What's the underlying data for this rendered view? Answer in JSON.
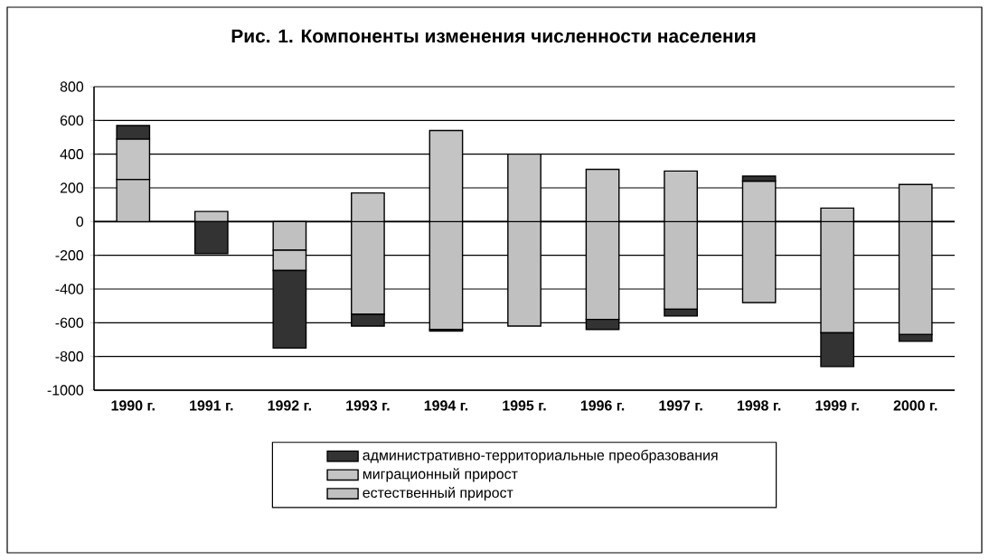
{
  "chart_data": {
    "type": "bar",
    "stacked": true,
    "title": "Рис. 1. Компоненты изменения численности населения",
    "categories": [
      "1990 г.",
      "1991 г.",
      "1992 г.",
      "1993 г.",
      "1994 г.",
      "1995 г.",
      "1996 г.",
      "1997 г.",
      "1998 г.",
      "1999 г.",
      "2000 г."
    ],
    "series": [
      {
        "name": "естественный прирост",
        "color": "#c0c0c0",
        "values": [
          250,
          0,
          -170,
          -550,
          -640,
          -620,
          -580,
          -520,
          -480,
          -660,
          -670
        ]
      },
      {
        "name": "миграционный прирост",
        "color": "#c4c4c4",
        "values": [
          240,
          60,
          -120,
          170,
          540,
          400,
          310,
          300,
          240,
          80,
          220
        ]
      },
      {
        "name": "административно-территориальные преобразования",
        "color": "#333333",
        "values": [
          80,
          -190,
          -460,
          -70,
          -10,
          0,
          -60,
          -40,
          30,
          -200,
          -40
        ]
      }
    ],
    "ylim": [
      -1000,
      800
    ],
    "yticks": [
      -1000,
      -800,
      -600,
      -400,
      -200,
      0,
      200,
      400,
      600,
      800
    ],
    "grid": "y",
    "legend": "bottom"
  }
}
